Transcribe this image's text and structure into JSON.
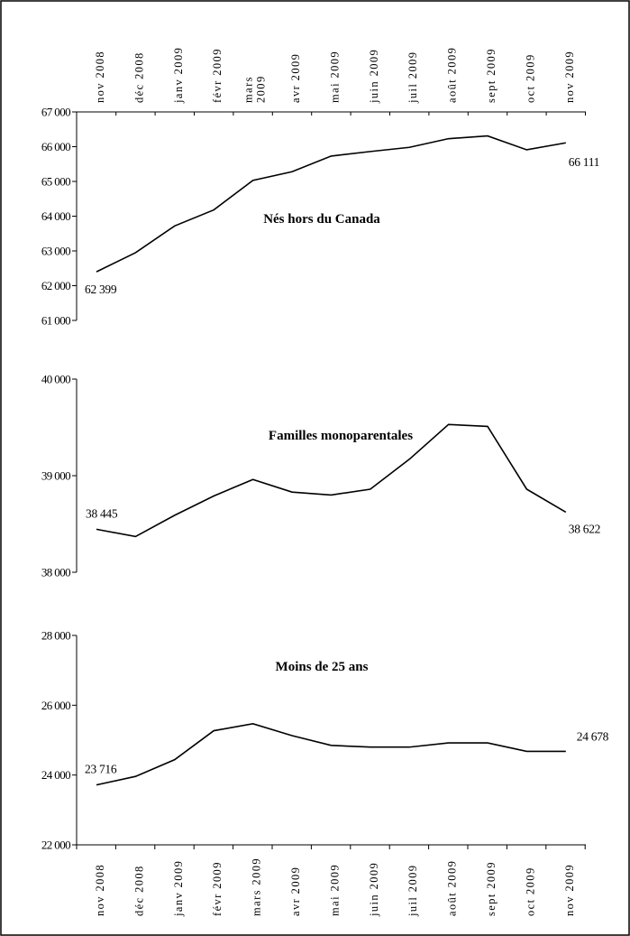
{
  "chart_data": {
    "type": "line",
    "x": [
      "nov 2008",
      "déc 2008",
      "janv 2009",
      "févr 2009",
      "mars 2009",
      "avr 2009",
      "mai 2009",
      "juin 2009",
      "juil 2009",
      "août 2009",
      "sept 2009",
      "oct 2009",
      "nov 2009"
    ],
    "x_labels_top": [
      "nov 2008",
      "déc 2008",
      "janv 2009",
      "févr 2009",
      "mars\n2009",
      "avr 2009",
      "mai 2009",
      "juin 2009",
      "juil 2009",
      "août 2009",
      "sept 2009",
      "oct 2009",
      "nov 2009"
    ],
    "x_labels_bottom": [
      "nov 2008",
      "déc 2008",
      "janv 2009",
      "févr 2009",
      "mars 2009",
      "avr 2009",
      "mai 2009",
      "juin 2009",
      "juil 2009",
      "août 2009",
      "sept 2009",
      "oct 2009",
      "nov 2009"
    ],
    "panels": [
      {
        "title": "Nés hors du Canada",
        "ylim": [
          61000,
          67000
        ],
        "yticks": [
          61000,
          62000,
          63000,
          64000,
          65000,
          66000,
          67000
        ],
        "ytick_labels": [
          "61 000",
          "62 000",
          "63 000",
          "64 000",
          "65 000",
          "66 000",
          "67 000"
        ],
        "values": [
          62399,
          62950,
          63720,
          64180,
          65030,
          65280,
          65730,
          65860,
          65980,
          66230,
          66310,
          65910,
          66111
        ],
        "first_label": "62 399",
        "last_label": "66 111"
      },
      {
        "title": "Familles monoparentales",
        "ylim": [
          38000,
          40000
        ],
        "yticks": [
          38000,
          39000,
          40000
        ],
        "ytick_labels": [
          "38 000",
          "39 000",
          "40 000"
        ],
        "values": [
          38445,
          38370,
          38590,
          38790,
          38960,
          38830,
          38800,
          38860,
          39170,
          39530,
          39510,
          38860,
          38622
        ],
        "first_label": "38 445",
        "last_label": "38 622"
      },
      {
        "title": "Moins de 25 ans",
        "ylim": [
          22000,
          28000
        ],
        "yticks": [
          22000,
          24000,
          26000,
          28000
        ],
        "ytick_labels": [
          "22 000",
          "24 000",
          "26 000",
          "28 000"
        ],
        "values": [
          23716,
          23960,
          24440,
          25270,
          25470,
          25130,
          24850,
          24800,
          24800,
          24920,
          24920,
          24678,
          24678
        ],
        "first_label": "23 716",
        "last_label": "24 678"
      }
    ]
  }
}
